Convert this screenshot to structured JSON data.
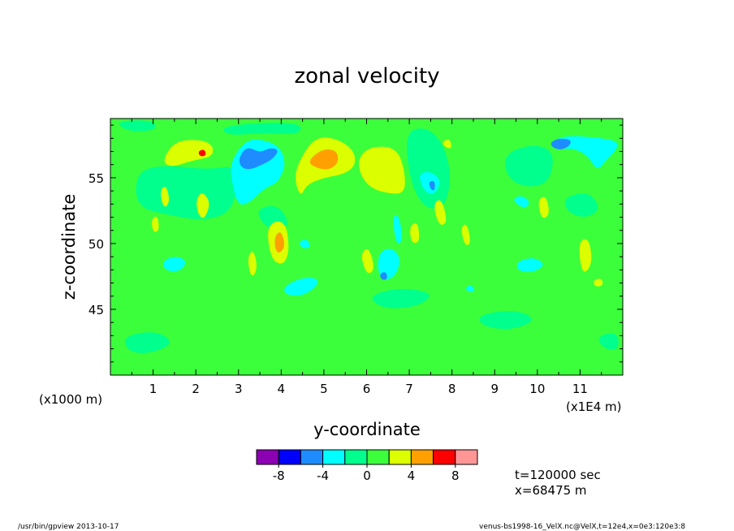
{
  "chart_data": {
    "type": "heatmap",
    "title": "zonal velocity",
    "xlabel": "y-coordinate",
    "ylabel": "z-coordinate",
    "x_scale_note": "(x1000 m)",
    "x_unit_note": "(x1E4 m)",
    "xlim": [
      0,
      12
    ],
    "ylim": [
      40,
      59.5
    ],
    "xticks": [
      "1",
      "2",
      "3",
      "4",
      "5",
      "6",
      "7",
      "8",
      "9",
      "10",
      "11"
    ],
    "yticks": [
      "45",
      "50",
      "55"
    ],
    "colorbar": {
      "levels": [
        -10,
        -8,
        -6,
        -4,
        -2,
        0,
        2,
        4,
        6,
        8,
        10
      ],
      "labels": [
        "-8",
        "-4",
        "0",
        "4",
        "8"
      ],
      "colors": [
        "#8c00b4",
        "#0000ff",
        "#1e8cff",
        "#00ffff",
        "#00ff8c",
        "#3cff3c",
        "#dcff00",
        "#ffa000",
        "#ff0000",
        "#ff9696"
      ]
    },
    "background_color": "#3cff3c",
    "features": [
      {
        "region": "cyan",
        "value": -3,
        "points": [
          [
            2.8,
            56.2
          ],
          [
            3.2,
            58
          ],
          [
            3.7,
            57.8
          ],
          [
            4.0,
            57.2
          ],
          [
            4.1,
            56
          ],
          [
            4.0,
            55.2
          ],
          [
            3.9,
            54.6
          ],
          [
            3.6,
            54.2
          ],
          [
            3.3,
            53.2
          ],
          [
            3.0,
            52.8
          ],
          [
            2.85,
            54.5
          ]
        ]
      },
      {
        "region": "blue",
        "value": -5,
        "points": [
          [
            3.0,
            56.5
          ],
          [
            3.2,
            57.4
          ],
          [
            3.5,
            56.9
          ],
          [
            3.75,
            57.3
          ],
          [
            3.95,
            57.1
          ],
          [
            3.8,
            56.4
          ],
          [
            3.5,
            55.9
          ],
          [
            3.25,
            55.6
          ],
          [
            3.05,
            55.8
          ]
        ]
      },
      {
        "region": "yellow",
        "value": 3,
        "points": [
          [
            4.45,
            56.5
          ],
          [
            4.8,
            58.1
          ],
          [
            5.3,
            58.0
          ],
          [
            5.7,
            57.1
          ],
          [
            5.75,
            56.0
          ],
          [
            5.5,
            55.3
          ],
          [
            5.0,
            55.0
          ],
          [
            4.6,
            54.5
          ],
          [
            4.45,
            53.5
          ],
          [
            4.3,
            55.0
          ]
        ]
      },
      {
        "region": "orange",
        "value": 5,
        "points": [
          [
            4.6,
            56.2
          ],
          [
            4.95,
            57.2
          ],
          [
            5.3,
            57.1
          ],
          [
            5.35,
            56.2
          ],
          [
            5.15,
            55.6
          ],
          [
            4.85,
            55.7
          ]
        ]
      },
      {
        "region": "yellow",
        "value": 3,
        "points": [
          [
            5.8,
            56.5
          ],
          [
            6.1,
            57.4
          ],
          [
            6.7,
            57.3
          ],
          [
            6.9,
            55.5
          ],
          [
            6.9,
            53.8
          ],
          [
            6.5,
            53.8
          ],
          [
            6.1,
            54.2
          ],
          [
            5.85,
            55.2
          ]
        ]
      },
      {
        "region": "yellow",
        "value": 3,
        "points": [
          [
            1.2,
            56.2
          ],
          [
            1.5,
            57.8
          ],
          [
            2.1,
            57.9
          ],
          [
            2.4,
            57.5
          ],
          [
            2.4,
            56.6
          ],
          [
            1.9,
            56.3
          ],
          [
            1.45,
            55.8
          ]
        ]
      },
      {
        "region": "cyan",
        "value": -3,
        "points": [
          [
            10.3,
            57.6
          ],
          [
            10.6,
            58.2
          ],
          [
            11.3,
            58.1
          ],
          [
            11.9,
            57.8
          ],
          [
            11.85,
            57.1
          ],
          [
            11.6,
            56.3
          ],
          [
            11.4,
            55.5
          ],
          [
            11.2,
            56.6
          ],
          [
            10.9,
            57.2
          ],
          [
            10.55,
            57.2
          ]
        ]
      },
      {
        "region": "blue",
        "value": -5,
        "points": [
          [
            10.3,
            57.7
          ],
          [
            10.5,
            58.0
          ],
          [
            10.8,
            57.9
          ],
          [
            10.75,
            57.4
          ],
          [
            10.55,
            57.1
          ],
          [
            10.35,
            57.3
          ]
        ]
      },
      {
        "region": "cyan",
        "value": -3,
        "points": [
          [
            7.2,
            55.3
          ],
          [
            7.5,
            55.5
          ],
          [
            7.75,
            54.8
          ],
          [
            7.6,
            53.7
          ],
          [
            7.35,
            53.9
          ]
        ]
      },
      {
        "region": "blue",
        "value": -5,
        "points": [
          [
            7.45,
            54.7
          ],
          [
            7.6,
            54.8
          ],
          [
            7.6,
            54.0
          ],
          [
            7.5,
            54.1
          ]
        ]
      },
      {
        "region": "cyan",
        "value": -3,
        "points": [
          [
            4.05,
            46.7
          ],
          [
            4.45,
            47.4
          ],
          [
            4.85,
            47.4
          ],
          [
            4.85,
            46.8
          ],
          [
            4.5,
            46.0
          ],
          [
            4.1,
            46.1
          ]
        ]
      },
      {
        "region": "cyan",
        "value": -3,
        "points": [
          [
            1.2,
            48.6
          ],
          [
            1.5,
            49.1
          ],
          [
            1.8,
            48.7
          ],
          [
            1.65,
            47.9
          ],
          [
            1.3,
            47.9
          ]
        ]
      },
      {
        "region": "cyan",
        "value": -3,
        "points": [
          [
            9.5,
            48.6
          ],
          [
            9.9,
            49.0
          ],
          [
            10.2,
            48.4
          ],
          [
            9.9,
            47.8
          ],
          [
            9.55,
            47.9
          ]
        ]
      },
      {
        "region": "cyan",
        "value": -3,
        "points": [
          [
            9.4,
            53.3
          ],
          [
            9.6,
            53.7
          ],
          [
            9.85,
            53.2
          ],
          [
            9.7,
            52.6
          ]
        ]
      },
      {
        "region": "cyan",
        "value": -3,
        "points": [
          [
            6.3,
            49.4
          ],
          [
            6.6,
            49.7
          ],
          [
            6.8,
            48.9
          ],
          [
            6.7,
            47.6
          ],
          [
            6.4,
            47.1
          ],
          [
            6.25,
            48.0
          ]
        ]
      },
      {
        "region": "blue",
        "value": -5,
        "points": [
          [
            6.3,
            47.7
          ],
          [
            6.45,
            47.9
          ],
          [
            6.5,
            47.3
          ],
          [
            6.35,
            47.2
          ]
        ]
      },
      {
        "region": "cyan",
        "value": -3,
        "points": [
          [
            6.6,
            52.0
          ],
          [
            6.75,
            52.3
          ],
          [
            6.85,
            50.3
          ],
          [
            6.7,
            49.8
          ]
        ]
      },
      {
        "region": "orange",
        "value": 5,
        "points": [
          [
            3.85,
            50.6
          ],
          [
            4.0,
            51.0
          ],
          [
            4.1,
            49.8
          ],
          [
            3.95,
            49.2
          ],
          [
            3.85,
            49.6
          ]
        ]
      },
      {
        "region": "yellow",
        "value": 3,
        "points": [
          [
            3.65,
            51.5
          ],
          [
            4.1,
            51.8
          ],
          [
            4.2,
            49.5
          ],
          [
            4.05,
            48.3
          ],
          [
            3.75,
            48.8
          ]
        ]
      },
      {
        "region": "yellow",
        "value": 3,
        "points": [
          [
            2.0,
            53.3
          ],
          [
            2.15,
            54.0
          ],
          [
            2.35,
            53.1
          ],
          [
            2.2,
            51.8
          ],
          [
            2.05,
            52.2
          ]
        ]
      },
      {
        "region": "yellow",
        "value": 3,
        "points": [
          [
            1.15,
            54.0
          ],
          [
            1.3,
            54.5
          ],
          [
            1.4,
            53.2
          ],
          [
            1.25,
            52.6
          ]
        ]
      },
      {
        "region": "yellow",
        "value": 3,
        "points": [
          [
            0.95,
            51.8
          ],
          [
            1.1,
            52.2
          ],
          [
            1.15,
            51.0
          ],
          [
            1.0,
            50.8
          ]
        ]
      },
      {
        "region": "yellow",
        "value": 3,
        "points": [
          [
            3.2,
            48.9
          ],
          [
            3.35,
            49.6
          ],
          [
            3.45,
            48.1
          ],
          [
            3.3,
            47.3
          ]
        ]
      },
      {
        "region": "yellow",
        "value": 3,
        "points": [
          [
            5.85,
            49.2
          ],
          [
            6.05,
            49.8
          ],
          [
            6.2,
            48.0
          ],
          [
            6.0,
            47.6
          ]
        ]
      },
      {
        "region": "yellow",
        "value": 3,
        "points": [
          [
            7.55,
            53.0
          ],
          [
            7.75,
            53.5
          ],
          [
            7.9,
            51.6
          ],
          [
            7.7,
            51.3
          ]
        ]
      },
      {
        "region": "yellow",
        "value": 3,
        "points": [
          [
            7.0,
            51.3
          ],
          [
            7.2,
            51.7
          ],
          [
            7.25,
            50.1
          ],
          [
            7.05,
            50.0
          ]
        ]
      },
      {
        "region": "yellow",
        "value": 3,
        "points": [
          [
            8.2,
            51.2
          ],
          [
            8.35,
            51.6
          ],
          [
            8.45,
            50.0
          ],
          [
            8.3,
            49.8
          ]
        ]
      },
      {
        "region": "yellow",
        "value": 3,
        "points": [
          [
            10.95,
            50.1
          ],
          [
            11.2,
            50.5
          ],
          [
            11.3,
            48.5
          ],
          [
            11.05,
            47.5
          ]
        ]
      },
      {
        "region": "yellow",
        "value": 3,
        "points": [
          [
            10.0,
            53.3
          ],
          [
            10.2,
            53.7
          ],
          [
            10.3,
            52.2
          ],
          [
            10.1,
            51.8
          ]
        ]
      },
      {
        "region": "yellow",
        "value": 3,
        "points": [
          [
            11.3,
            47.2
          ],
          [
            11.5,
            47.4
          ],
          [
            11.55,
            46.8
          ],
          [
            11.35,
            46.7
          ]
        ]
      },
      {
        "region": "yellow",
        "value": 3,
        "points": [
          [
            7.75,
            57.7
          ],
          [
            7.95,
            58.0
          ],
          [
            8.0,
            57.2
          ],
          [
            7.85,
            57.3
          ]
        ]
      },
      {
        "region": "red",
        "value": 7,
        "points": [
          [
            2.05,
            57.0
          ],
          [
            2.2,
            57.2
          ],
          [
            2.25,
            56.7
          ],
          [
            2.1,
            56.6
          ]
        ]
      },
      {
        "region": "cyan",
        "value": -3,
        "points": [
          [
            8.3,
            46.6
          ],
          [
            8.45,
            46.9
          ],
          [
            8.55,
            46.4
          ],
          [
            8.4,
            46.3
          ]
        ]
      },
      {
        "region": "cyan",
        "value": -3,
        "points": [
          [
            4.4,
            50.1
          ],
          [
            4.6,
            50.4
          ],
          [
            4.7,
            49.7
          ],
          [
            4.5,
            49.6
          ]
        ]
      },
      {
        "region": "teal",
        "value": -1,
        "points": [
          [
            0.6,
            55.4
          ],
          [
            1.2,
            56.0
          ],
          [
            2.3,
            55.6
          ],
          [
            3.0,
            56.0
          ],
          [
            2.9,
            52.5
          ],
          [
            2.2,
            51.7
          ],
          [
            1.3,
            52.2
          ],
          [
            0.6,
            52.8
          ]
        ]
      },
      {
        "region": "teal",
        "value": -1,
        "points": [
          [
            2.6,
            59.0
          ],
          [
            4.4,
            59.3
          ],
          [
            4.5,
            58.3
          ],
          [
            3.6,
            58.4
          ],
          [
            2.7,
            58.2
          ]
        ]
      },
      {
        "region": "teal",
        "value": -1,
        "points": [
          [
            6.9,
            58.5
          ],
          [
            7.4,
            58.9
          ],
          [
            7.8,
            57.6
          ],
          [
            8.0,
            55.0
          ],
          [
            7.8,
            52.5
          ],
          [
            7.3,
            52.8
          ],
          [
            7.0,
            55.0
          ]
        ]
      },
      {
        "region": "teal",
        "value": -1,
        "points": [
          [
            9.2,
            56.8
          ],
          [
            9.9,
            57.6
          ],
          [
            10.4,
            57.0
          ],
          [
            10.3,
            54.7
          ],
          [
            9.8,
            54.2
          ],
          [
            9.3,
            54.9
          ]
        ]
      },
      {
        "region": "teal",
        "value": -1,
        "points": [
          [
            6.0,
            46.0
          ],
          [
            6.8,
            46.7
          ],
          [
            7.6,
            46.2
          ],
          [
            7.2,
            45.2
          ],
          [
            6.4,
            45.0
          ]
        ]
      },
      {
        "region": "teal",
        "value": -1,
        "points": [
          [
            0.3,
            43.0
          ],
          [
            1.1,
            43.4
          ],
          [
            1.5,
            42.4
          ],
          [
            0.9,
            41.6
          ],
          [
            0.4,
            41.8
          ]
        ]
      },
      {
        "region": "teal",
        "value": -1,
        "points": [
          [
            8.6,
            44.6
          ],
          [
            9.5,
            45.0
          ],
          [
            10.0,
            44.2
          ],
          [
            9.4,
            43.4
          ],
          [
            8.7,
            43.7
          ]
        ]
      },
      {
        "region": "teal",
        "value": -1,
        "points": [
          [
            10.6,
            53.5
          ],
          [
            11.2,
            54.0
          ],
          [
            11.5,
            52.6
          ],
          [
            11.1,
            51.9
          ],
          [
            10.7,
            52.4
          ]
        ]
      },
      {
        "region": "teal",
        "value": -1,
        "points": [
          [
            3.4,
            52.6
          ],
          [
            3.9,
            53.0
          ],
          [
            4.2,
            51.6
          ],
          [
            4.0,
            50.9
          ],
          [
            3.6,
            51.3
          ]
        ]
      },
      {
        "region": "teal",
        "value": -1,
        "points": [
          [
            0.1,
            59.3
          ],
          [
            1.0,
            59.4
          ],
          [
            1.1,
            58.6
          ],
          [
            0.4,
            58.5
          ]
        ]
      },
      {
        "region": "teal",
        "value": -1,
        "points": [
          [
            11.4,
            43.0
          ],
          [
            11.9,
            43.3
          ],
          [
            11.9,
            41.8
          ],
          [
            11.5,
            42.1
          ]
        ]
      }
    ]
  },
  "run_info": {
    "time": "t=120000 sec",
    "xpos": "x=68475 m"
  },
  "footer": {
    "left": "/usr/bin/gpview  2013-10-17",
    "right": "venus-bs1998-16_VelX.nc@VelX,t=12e4,x=0e3:120e3:8"
  }
}
